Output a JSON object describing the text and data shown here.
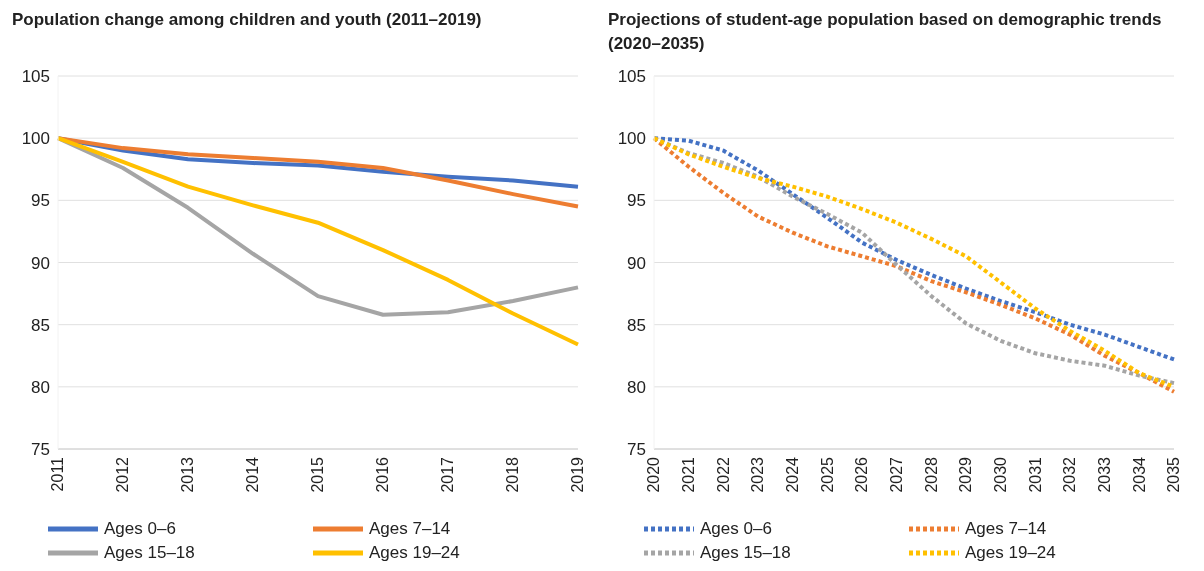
{
  "chart_data": [
    {
      "type": "line",
      "title": "Population change among children and youth (2011–2019)",
      "categories": [
        "2011",
        "2012",
        "2013",
        "2014",
        "2015",
        "2016",
        "2017",
        "2018",
        "2019"
      ],
      "ylim": [
        75,
        105
      ],
      "yticks": [
        75,
        80,
        85,
        90,
        95,
        100,
        105
      ],
      "grid": "y",
      "legend": "bottom",
      "line_style": "solid",
      "marker": "none",
      "series": [
        {
          "name": "Ages 0–6",
          "color": "#4472c4",
          "values": [
            100,
            99.0,
            98.3,
            98.0,
            97.8,
            97.3,
            96.9,
            96.6,
            96.1
          ]
        },
        {
          "name": "Ages 7–14",
          "color": "#ed7d31",
          "values": [
            100,
            99.2,
            98.7,
            98.4,
            98.1,
            97.6,
            96.6,
            95.5,
            94.5
          ]
        },
        {
          "name": "Ages 15–18",
          "color": "#a5a5a5",
          "values": [
            100,
            97.6,
            94.4,
            90.7,
            87.3,
            85.8,
            86.0,
            86.9,
            88.0
          ]
        },
        {
          "name": "Ages 19–24",
          "color": "#ffc000",
          "values": [
            100,
            98.1,
            96.1,
            94.6,
            93.2,
            91.0,
            88.6,
            85.9,
            83.4
          ]
        }
      ]
    },
    {
      "type": "line",
      "title": "Projections of student-age population based on demographic trends (2020–2035)",
      "categories": [
        "2020",
        "2021",
        "2022",
        "2023",
        "2024",
        "2025",
        "2026",
        "2027",
        "2028",
        "2029",
        "2030",
        "2031",
        "2032",
        "2033",
        "2034",
        "2035"
      ],
      "ylim": [
        75,
        105
      ],
      "yticks": [
        75,
        80,
        85,
        90,
        95,
        100,
        105
      ],
      "grid": "y",
      "legend": "bottom",
      "line_style": "dotted",
      "marker": "none",
      "series": [
        {
          "name": "Ages 0–6",
          "color": "#4472c4",
          "values": [
            100,
            99.8,
            99.0,
            97.4,
            95.5,
            93.6,
            91.6,
            90.2,
            89.0,
            87.9,
            86.9,
            86.0,
            85.0,
            84.2,
            83.2,
            82.2
          ]
        },
        {
          "name": "Ages 7–14",
          "color": "#ed7d31",
          "values": [
            100,
            97.7,
            95.6,
            93.7,
            92.4,
            91.3,
            90.5,
            89.7,
            88.5,
            87.6,
            86.6,
            85.5,
            84.2,
            82.5,
            81.1,
            79.6
          ]
        },
        {
          "name": "Ages 15–18",
          "color": "#a5a5a5",
          "values": [
            100,
            98.8,
            98.0,
            96.9,
            95.3,
            93.9,
            92.4,
            89.8,
            87.3,
            85.1,
            83.7,
            82.7,
            82.1,
            81.7,
            80.9,
            80.3
          ]
        },
        {
          "name": "Ages 19–24",
          "color": "#ffc000",
          "values": [
            100,
            98.7,
            97.7,
            96.8,
            96.1,
            95.3,
            94.3,
            93.2,
            91.9,
            90.5,
            88.4,
            86.3,
            84.5,
            82.9,
            81.1,
            80.0
          ]
        }
      ]
    }
  ]
}
